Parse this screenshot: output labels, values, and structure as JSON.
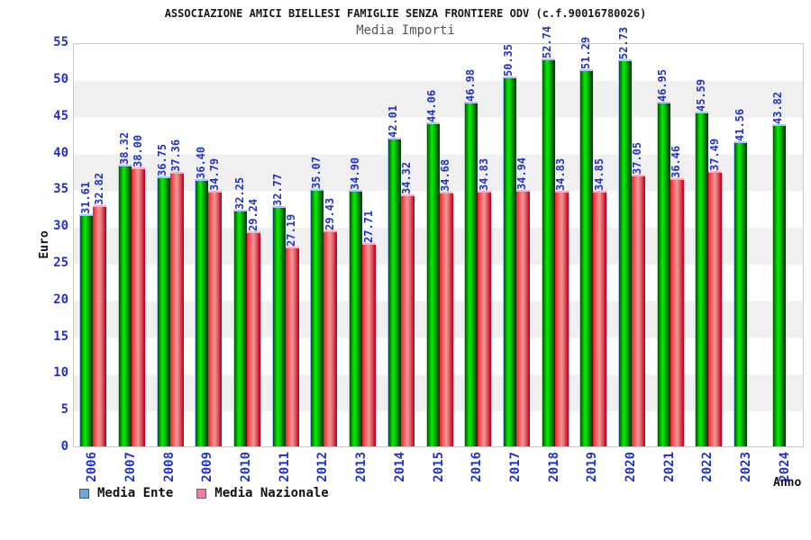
{
  "header": {
    "title": "ASSOCIAZIONE AMICI BIELLESI FAMIGLIE SENZA FRONTIERE ODV (c.f.90016780026)",
    "subtitle": "Media Importi"
  },
  "axes": {
    "y_label": "Euro",
    "x_label": "Anno",
    "y_ticks": [
      0,
      5,
      10,
      15,
      20,
      25,
      30,
      35,
      40,
      45,
      50,
      55
    ],
    "y_max": 55
  },
  "legend": {
    "items": [
      {
        "label": "Media Ente",
        "swatch_color": "#6fa8dc",
        "swatch_border": "#445577"
      },
      {
        "label": "Media Nazionale",
        "swatch_color": "#f07ca8",
        "swatch_border": "#666666"
      }
    ]
  },
  "colors": {
    "label_blue": "#2233cc",
    "bar_green_main": "#00cc00",
    "bar_red_main": "#ee4455",
    "band_gray": "#f0f0f1",
    "plot_border": "#c9c9c9"
  },
  "chart_data": {
    "type": "bar",
    "title": "Media Importi",
    "xlabel": "Anno",
    "ylabel": "Euro",
    "ylim": [
      0,
      55
    ],
    "grid": "alternating horizontal bands every 5 units",
    "legend_position": "bottom-left",
    "value_labels": "rotated 90deg, blue, two decimals, above bars",
    "categories": [
      "2006",
      "2007",
      "2008",
      "2009",
      "2010",
      "2011",
      "2012",
      "2013",
      "2014",
      "2015",
      "2016",
      "2017",
      "2018",
      "2019",
      "2020",
      "2021",
      "2022",
      "2023",
      "2024"
    ],
    "series": [
      {
        "name": "Media Ente",
        "color": "#00cc00",
        "values": [
          31.61,
          38.32,
          36.75,
          36.4,
          32.25,
          32.77,
          35.07,
          34.9,
          42.01,
          44.06,
          46.98,
          50.35,
          52.74,
          51.29,
          52.73,
          46.95,
          45.59,
          41.56,
          43.82
        ]
      },
      {
        "name": "Media Nazionale",
        "color": "#ee4455",
        "values": [
          32.82,
          38.0,
          37.36,
          34.79,
          29.24,
          27.19,
          29.43,
          27.71,
          34.32,
          34.68,
          34.83,
          34.94,
          34.83,
          34.85,
          37.05,
          36.46,
          37.49,
          null,
          null
        ]
      }
    ]
  }
}
